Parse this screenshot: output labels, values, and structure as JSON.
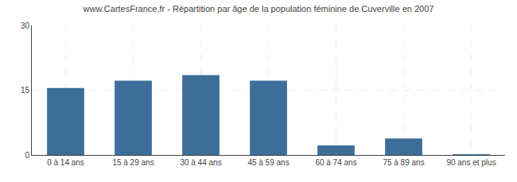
{
  "chart_data": {
    "type": "bar",
    "title": "www.CartesFrance.fr - Répartition par âge de la population féminine de Cuverville en 2007",
    "categories": [
      "0 à 14 ans",
      "15 à 29 ans",
      "30 à 44 ans",
      "45 à 59 ans",
      "60 à 74 ans",
      "75 à 89 ans",
      "90 ans et plus"
    ],
    "values": [
      15.5,
      17.2,
      18.5,
      17.2,
      2.2,
      3.8,
      0.15
    ],
    "color": "#3d6e99",
    "ylim": [
      0,
      30
    ],
    "yticks": [
      0,
      15,
      30
    ],
    "grid": true
  }
}
